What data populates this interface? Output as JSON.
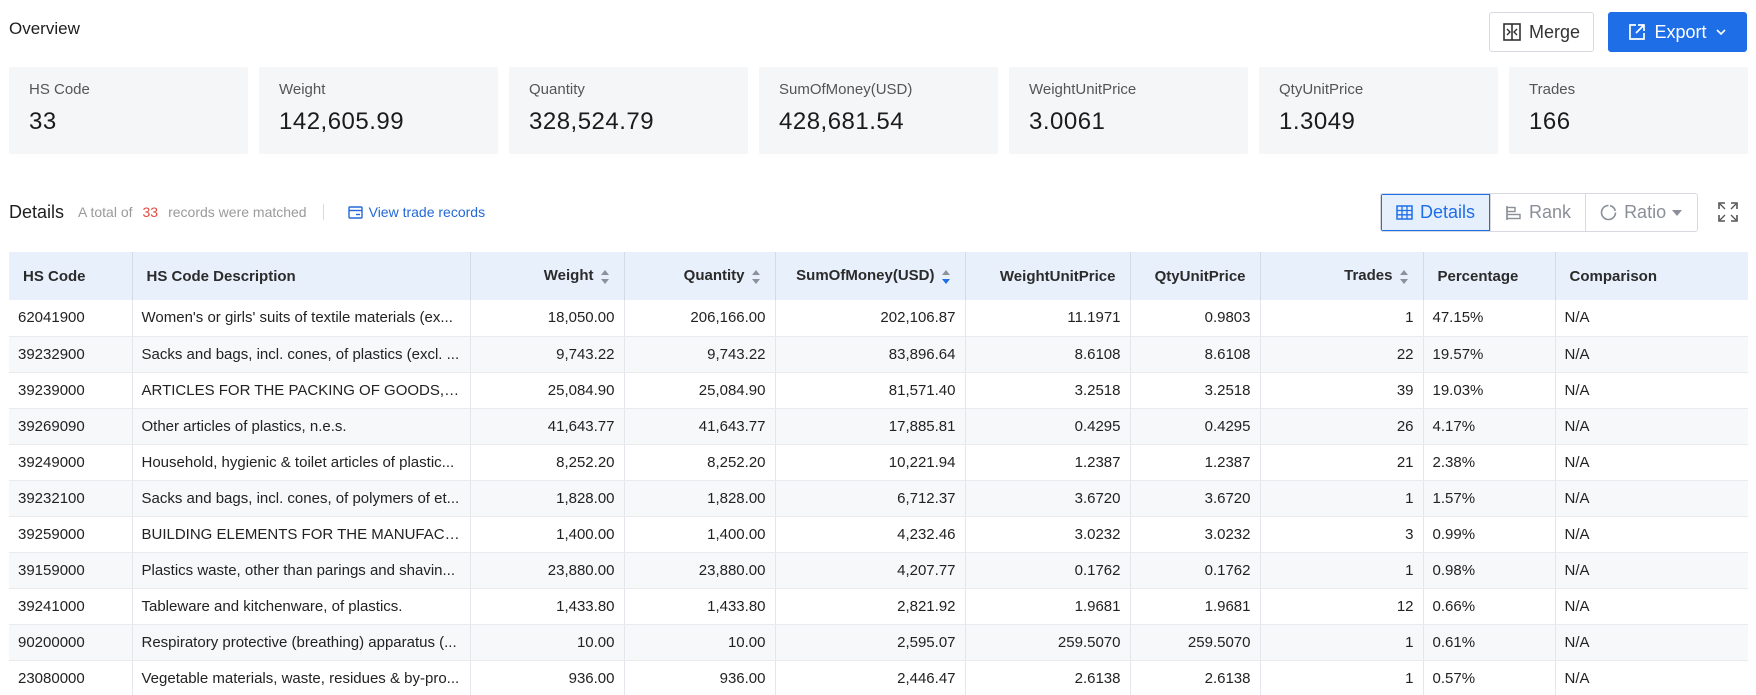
{
  "overview": {
    "title": "Overview"
  },
  "buttons": {
    "merge": "Merge",
    "export": "Export"
  },
  "cards": [
    {
      "label": "HS Code",
      "value": "33"
    },
    {
      "label": "Weight",
      "value": "142,605.99"
    },
    {
      "label": "Quantity",
      "value": "328,524.79"
    },
    {
      "label": "SumOfMoney(USD)",
      "value": "428,681.54"
    },
    {
      "label": "WeightUnitPrice",
      "value": "3.0061"
    },
    {
      "label": "QtyUnitPrice",
      "value": "1.3049"
    },
    {
      "label": "Trades",
      "value": "166"
    }
  ],
  "details": {
    "title": "Details",
    "total_prefix": "A total of",
    "count": "33",
    "total_suffix": "records were matched",
    "view_link": "View trade records"
  },
  "view_tabs": {
    "details": "Details",
    "rank": "Rank",
    "ratio": "Ratio"
  },
  "table": {
    "headers": [
      "HS Code",
      "HS Code Description",
      "Weight",
      "Quantity",
      "SumOfMoney(USD)",
      "WeightUnitPrice",
      "QtyUnitPrice",
      "Trades",
      "Percentage",
      "Comparison"
    ],
    "rows": [
      [
        "62041900",
        "Women's or girls' suits of textile materials (ex...",
        "18,050.00",
        "206,166.00",
        "202,106.87",
        "11.1971",
        "0.9803",
        "1",
        "47.15%",
        "N/A"
      ],
      [
        "39232900",
        "Sacks and bags, incl. cones, of plastics (excl. ...",
        "9,743.22",
        "9,743.22",
        "83,896.64",
        "8.6108",
        "8.6108",
        "22",
        "19.57%",
        "N/A"
      ],
      [
        "39239000",
        "ARTICLES FOR THE PACKING OF GOODS, OF ...",
        "25,084.90",
        "25,084.90",
        "81,571.40",
        "3.2518",
        "3.2518",
        "39",
        "19.03%",
        "N/A"
      ],
      [
        "39269090",
        "Other articles of plastics, n.e.s.",
        "41,643.77",
        "41,643.77",
        "17,885.81",
        "0.4295",
        "0.4295",
        "26",
        "4.17%",
        "N/A"
      ],
      [
        "39249000",
        "Household, hygienic & toilet articles of plastic...",
        "8,252.20",
        "8,252.20",
        "10,221.94",
        "1.2387",
        "1.2387",
        "21",
        "2.38%",
        "N/A"
      ],
      [
        "39232100",
        "Sacks and bags, incl. cones, of polymers of et...",
        "1,828.00",
        "1,828.00",
        "6,712.37",
        "3.6720",
        "3.6720",
        "1",
        "1.57%",
        "N/A"
      ],
      [
        "39259000",
        "BUILDING ELEMENTS FOR THE MANUFACTU...",
        "1,400.00",
        "1,400.00",
        "4,232.46",
        "3.0232",
        "3.0232",
        "3",
        "0.99%",
        "N/A"
      ],
      [
        "39159000",
        "Plastics waste, other than parings and shavin...",
        "23,880.00",
        "23,880.00",
        "4,207.77",
        "0.1762",
        "0.1762",
        "1",
        "0.98%",
        "N/A"
      ],
      [
        "39241000",
        "Tableware and kitchenware, of plastics.",
        "1,433.80",
        "1,433.80",
        "2,821.92",
        "1.9681",
        "1.9681",
        "12",
        "0.66%",
        "N/A"
      ],
      [
        "90200000",
        "Respiratory protective (breathing) apparatus (...",
        "10.00",
        "10.00",
        "2,595.07",
        "259.5070",
        "259.5070",
        "1",
        "0.61%",
        "N/A"
      ],
      [
        "23080000",
        "Vegetable materials, waste, residues & by-pro...",
        "936.00",
        "936.00",
        "2,446.47",
        "2.6138",
        "2.6138",
        "1",
        "0.57%",
        "N/A"
      ]
    ]
  },
  "colors": {
    "accent": "#1e6ee8",
    "count": "#e24d3f",
    "header_bg": "#e8f0fc",
    "card_bg": "#f5f6f8"
  }
}
